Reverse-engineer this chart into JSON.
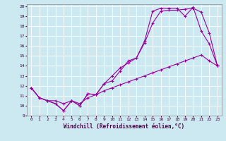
{
  "xlabel": "Windchill (Refroidissement éolien,°C)",
  "background_color": "#cce8f0",
  "line_color": "#990099",
  "grid_color": "#aaddcc",
  "xlim": [
    -0.5,
    23.5
  ],
  "ylim": [
    9,
    20.2
  ],
  "yticks": [
    9,
    10,
    11,
    12,
    13,
    14,
    15,
    16,
    17,
    18,
    19,
    20
  ],
  "xticks": [
    0,
    1,
    2,
    3,
    4,
    5,
    6,
    7,
    8,
    9,
    10,
    11,
    12,
    13,
    14,
    15,
    16,
    17,
    18,
    19,
    20,
    21,
    22,
    23
  ],
  "series": [
    {
      "x": [
        0,
        1,
        2,
        3,
        4,
        5,
        6,
        7,
        8,
        9,
        10,
        11,
        12,
        13,
        14,
        15,
        16,
        17,
        18,
        19,
        20,
        21,
        22,
        23
      ],
      "y": [
        11.8,
        10.8,
        10.5,
        10.2,
        9.5,
        10.5,
        10.0,
        11.2,
        11.1,
        12.2,
        12.5,
        13.5,
        14.5,
        14.8,
        16.5,
        19.5,
        19.8,
        19.8,
        19.8,
        19.0,
        19.9,
        17.5,
        16.2,
        14.0
      ]
    },
    {
      "x": [
        0,
        1,
        2,
        3,
        4,
        5,
        6,
        7,
        8,
        9,
        10,
        11,
        12,
        13,
        14,
        15,
        16,
        17,
        18,
        19,
        20,
        21,
        22,
        23
      ],
      "y": [
        11.8,
        10.8,
        10.5,
        10.2,
        9.5,
        10.5,
        10.0,
        11.2,
        11.1,
        12.2,
        13.0,
        13.8,
        14.3,
        14.8,
        16.3,
        18.3,
        19.5,
        19.6,
        19.6,
        19.7,
        19.8,
        19.4,
        17.3,
        14.0
      ]
    },
    {
      "x": [
        0,
        1,
        2,
        3,
        4,
        5,
        6,
        7,
        8,
        9,
        10,
        11,
        12,
        13,
        14,
        15,
        16,
        17,
        18,
        19,
        20,
        21,
        22,
        23
      ],
      "y": [
        11.8,
        10.8,
        10.5,
        10.5,
        10.2,
        10.5,
        10.2,
        10.8,
        11.1,
        11.5,
        11.8,
        12.1,
        12.4,
        12.7,
        13.0,
        13.3,
        13.6,
        13.9,
        14.2,
        14.5,
        14.8,
        15.1,
        14.5,
        14.0
      ]
    }
  ]
}
